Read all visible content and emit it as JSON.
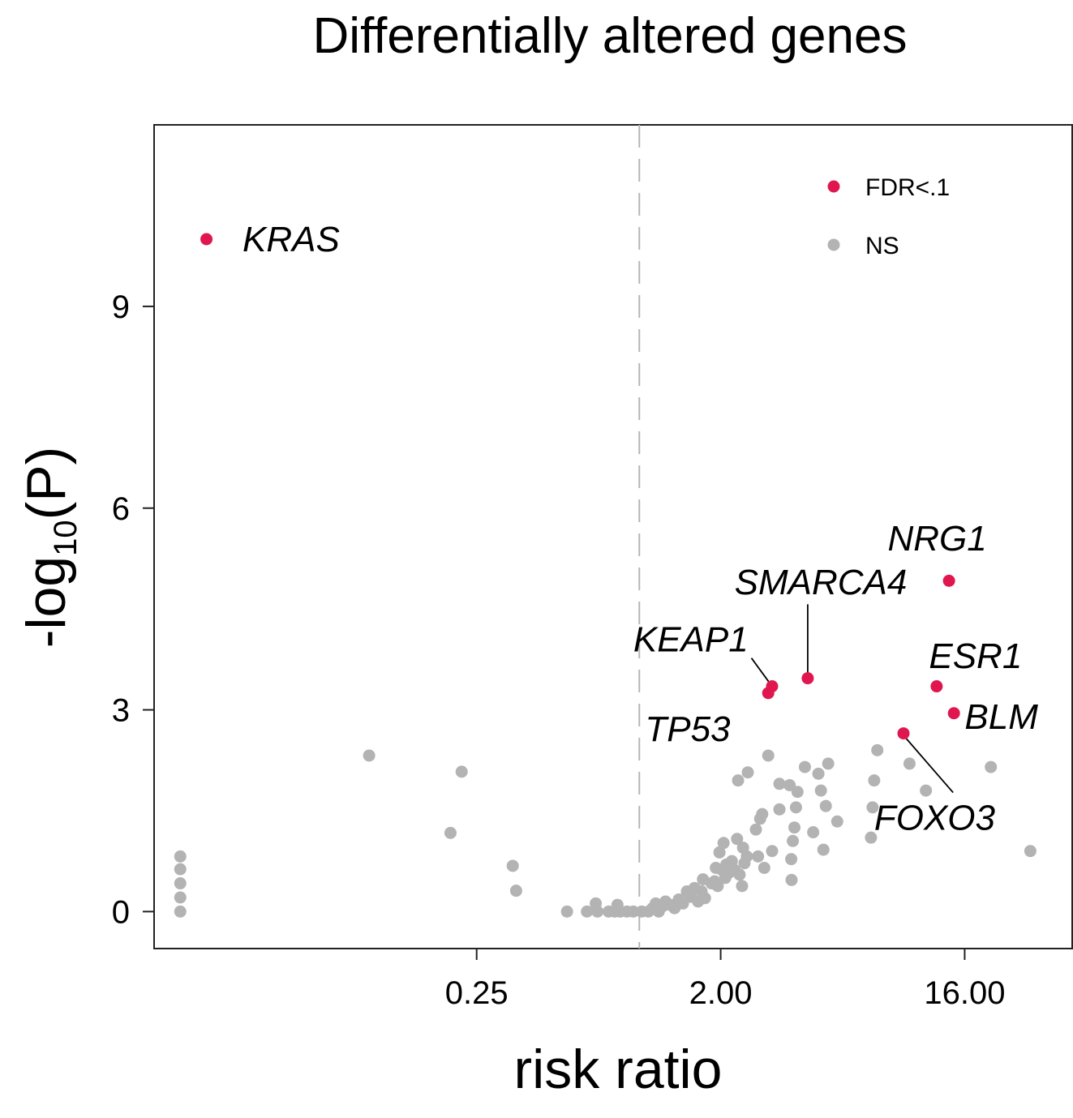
{
  "chart_data": {
    "type": "scatter",
    "title": "Differentially altered genes",
    "xlabel": "risk ratio",
    "ylabel_main": "-log",
    "ylabel_sub": "10",
    "ylabel_tail": "(P)",
    "x_scale": "log2",
    "xlim": [
      0.016,
      40
    ],
    "ylim": [
      -0.55,
      11.7
    ],
    "x_ticks": [
      {
        "value": 0.25,
        "label": "0.25"
      },
      {
        "value": 2,
        "label": "2.00"
      },
      {
        "value": 16,
        "label": "16.00"
      }
    ],
    "y_ticks": [
      {
        "value": 0,
        "label": "0"
      },
      {
        "value": 3,
        "label": "3"
      },
      {
        "value": 6,
        "label": "6"
      },
      {
        "value": 9,
        "label": "9"
      }
    ],
    "reference_line_x": 1,
    "legend": {
      "position": "top-right",
      "entries": [
        {
          "label": "FDR<.1",
          "color": "#e0174f"
        },
        {
          "label": "NS",
          "color": "#b3b3b3"
        }
      ]
    },
    "significant_points": [
      {
        "gene": "KRAS",
        "x": 0.025,
        "y": 10.0
      },
      {
        "gene": "NRG1",
        "x": 14.0,
        "y": 4.92
      },
      {
        "gene": "SMARCA4",
        "x": 4.2,
        "y": 3.47
      },
      {
        "gene": "KEAP1",
        "x": 3.1,
        "y": 3.35
      },
      {
        "gene": "TP53",
        "x": 3.0,
        "y": 3.25
      },
      {
        "gene": "ESR1",
        "x": 12.6,
        "y": 3.35
      },
      {
        "gene": "BLM",
        "x": 14.6,
        "y": 2.95
      },
      {
        "gene": "FOXO3",
        "x": 9.5,
        "y": 2.65
      }
    ],
    "ns_points": [
      {
        "x": 0.02,
        "y": 0.82
      },
      {
        "x": 0.02,
        "y": 0.63
      },
      {
        "x": 0.02,
        "y": 0.42
      },
      {
        "x": 0.02,
        "y": 0.21
      },
      {
        "x": 0.02,
        "y": 0.0
      },
      {
        "x": 0.1,
        "y": 2.32
      },
      {
        "x": 0.2,
        "y": 1.17
      },
      {
        "x": 0.22,
        "y": 2.08
      },
      {
        "x": 0.34,
        "y": 0.68
      },
      {
        "x": 0.35,
        "y": 0.31
      },
      {
        "x": 0.54,
        "y": 0.0
      },
      {
        "x": 0.64,
        "y": 0.0
      },
      {
        "x": 0.69,
        "y": 0.12
      },
      {
        "x": 0.7,
        "y": 0.0
      },
      {
        "x": 0.77,
        "y": 0.0
      },
      {
        "x": 0.81,
        "y": 0.0
      },
      {
        "x": 0.83,
        "y": 0.1
      },
      {
        "x": 0.85,
        "y": 0.0
      },
      {
        "x": 0.9,
        "y": 0.0
      },
      {
        "x": 0.95,
        "y": 0.0
      },
      {
        "x": 1.02,
        "y": 0.0
      },
      {
        "x": 1.08,
        "y": 0.0
      },
      {
        "x": 1.12,
        "y": 0.05
      },
      {
        "x": 1.15,
        "y": 0.12
      },
      {
        "x": 1.18,
        "y": 0.0
      },
      {
        "x": 1.22,
        "y": 0.08
      },
      {
        "x": 1.25,
        "y": 0.15
      },
      {
        "x": 1.3,
        "y": 0.1
      },
      {
        "x": 1.35,
        "y": 0.05
      },
      {
        "x": 1.4,
        "y": 0.18
      },
      {
        "x": 1.45,
        "y": 0.12
      },
      {
        "x": 1.5,
        "y": 0.3
      },
      {
        "x": 1.55,
        "y": 0.22
      },
      {
        "x": 1.6,
        "y": 0.35
      },
      {
        "x": 1.65,
        "y": 0.15
      },
      {
        "x": 1.7,
        "y": 0.3
      },
      {
        "x": 1.72,
        "y": 0.48
      },
      {
        "x": 1.75,
        "y": 0.2
      },
      {
        "x": 1.85,
        "y": 0.42
      },
      {
        "x": 1.9,
        "y": 0.45
      },
      {
        "x": 1.92,
        "y": 0.65
      },
      {
        "x": 1.95,
        "y": 0.38
      },
      {
        "x": 1.98,
        "y": 0.88
      },
      {
        "x": 2.02,
        "y": 0.62
      },
      {
        "x": 2.05,
        "y": 1.02
      },
      {
        "x": 2.08,
        "y": 0.5
      },
      {
        "x": 2.1,
        "y": 0.7
      },
      {
        "x": 2.15,
        "y": 0.58
      },
      {
        "x": 2.2,
        "y": 0.75
      },
      {
        "x": 2.25,
        "y": 0.62
      },
      {
        "x": 2.3,
        "y": 1.08
      },
      {
        "x": 2.32,
        "y": 1.95
      },
      {
        "x": 2.35,
        "y": 0.55
      },
      {
        "x": 2.4,
        "y": 0.38
      },
      {
        "x": 2.42,
        "y": 0.95
      },
      {
        "x": 2.45,
        "y": 0.72
      },
      {
        "x": 2.5,
        "y": 0.82
      },
      {
        "x": 2.52,
        "y": 2.07
      },
      {
        "x": 2.7,
        "y": 1.22
      },
      {
        "x": 2.75,
        "y": 0.82
      },
      {
        "x": 2.8,
        "y": 1.38
      },
      {
        "x": 2.85,
        "y": 1.45
      },
      {
        "x": 2.9,
        "y": 0.65
      },
      {
        "x": 3.0,
        "y": 2.32
      },
      {
        "x": 3.1,
        "y": 0.9
      },
      {
        "x": 3.3,
        "y": 1.9
      },
      {
        "x": 3.3,
        "y": 1.52
      },
      {
        "x": 3.6,
        "y": 1.88
      },
      {
        "x": 3.65,
        "y": 0.78
      },
      {
        "x": 3.66,
        "y": 0.47
      },
      {
        "x": 3.7,
        "y": 1.05
      },
      {
        "x": 3.75,
        "y": 1.25
      },
      {
        "x": 3.8,
        "y": 1.55
      },
      {
        "x": 3.85,
        "y": 1.78
      },
      {
        "x": 4.1,
        "y": 2.15
      },
      {
        "x": 4.4,
        "y": 1.18
      },
      {
        "x": 4.6,
        "y": 2.05
      },
      {
        "x": 4.7,
        "y": 1.8
      },
      {
        "x": 4.8,
        "y": 0.92
      },
      {
        "x": 4.9,
        "y": 1.57
      },
      {
        "x": 5.0,
        "y": 2.2
      },
      {
        "x": 5.4,
        "y": 1.34
      },
      {
        "x": 7.2,
        "y": 1.1
      },
      {
        "x": 7.3,
        "y": 1.55
      },
      {
        "x": 7.4,
        "y": 1.95
      },
      {
        "x": 7.6,
        "y": 2.4
      },
      {
        "x": 10.0,
        "y": 2.2
      },
      {
        "x": 11.5,
        "y": 1.8
      },
      {
        "x": 20.0,
        "y": 2.15
      },
      {
        "x": 28.0,
        "y": 0.9
      }
    ],
    "labels": [
      {
        "gene": "KRAS",
        "x": 0.034,
        "y": 10.0
      },
      {
        "gene": "NRG1",
        "x": 8.3,
        "y": 5.55
      },
      {
        "gene": "SMARCA4",
        "x": 2.25,
        "y": 4.9
      },
      {
        "gene": "KEAP1",
        "x": 0.95,
        "y": 4.05
      },
      {
        "gene": "TP53",
        "x": 1.05,
        "y": 2.72
      },
      {
        "gene": "ESR1",
        "x": 11.8,
        "y": 3.8
      },
      {
        "gene": "BLM",
        "x": 16.0,
        "y": 2.9
      },
      {
        "gene": "FOXO3",
        "x": 7.4,
        "y": 1.4
      }
    ],
    "leader_lines": [
      {
        "from": {
          "x": 2.6,
          "y": 3.77
        },
        "to": {
          "x": 3.1,
          "y": 3.35
        }
      },
      {
        "from": {
          "x": 4.2,
          "y": 4.57
        },
        "to": {
          "x": 4.2,
          "y": 3.55
        }
      },
      {
        "from": {
          "x": 9.6,
          "y": 2.6
        },
        "to": {
          "x": 14.5,
          "y": 1.77
        }
      }
    ]
  }
}
